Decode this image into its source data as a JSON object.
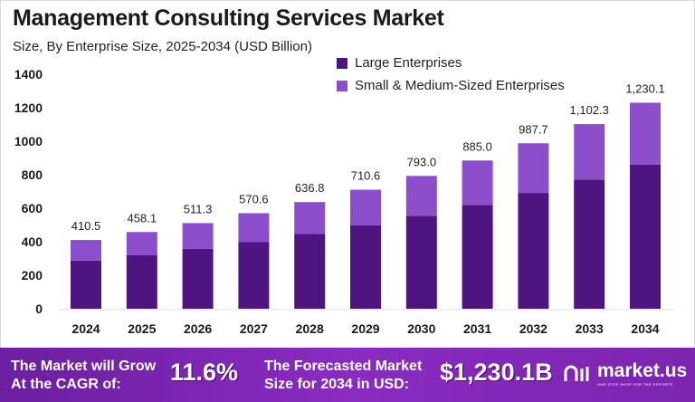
{
  "title": "Management Consulting Services Market",
  "subtitle": "Size, By Enterprise Size, 2025-2034 (USD Billion)",
  "colors": {
    "large": "#4e1580",
    "sme": "#8c4ecb",
    "banner": "#7b25b0"
  },
  "chart_data": {
    "type": "bar",
    "stacked": true,
    "categories": [
      "2024",
      "2025",
      "2026",
      "2027",
      "2028",
      "2029",
      "2030",
      "2031",
      "2032",
      "2033",
      "2034"
    ],
    "series": [
      {
        "name": "Large Enterprises",
        "values": [
          287.4,
          320.7,
          357.9,
          399.4,
          445.8,
          497.4,
          555.1,
          619.5,
          691.4,
          771.6,
          861.1
        ]
      },
      {
        "name": "Small & Medium-Sized Enterprises",
        "values": [
          123.1,
          137.4,
          153.4,
          171.2,
          191.0,
          213.2,
          237.9,
          265.5,
          296.3,
          330.7,
          369.0
        ]
      }
    ],
    "totals": [
      "410.5",
      "458.1",
      "511.3",
      "570.6",
      "636.8",
      "710.6",
      "793.0",
      "885.0",
      "987.7",
      "1,102.3",
      "1,230.1"
    ],
    "totals_values": [
      410.5,
      458.1,
      511.3,
      570.6,
      636.8,
      710.6,
      793.0,
      885.0,
      987.7,
      1102.3,
      1230.1
    ],
    "yticks": [
      "0",
      "200",
      "400",
      "600",
      "800",
      "1000",
      "1200",
      "1400"
    ],
    "ylim": [
      0,
      1400
    ],
    "grid": false,
    "legend": "top-right"
  },
  "banner": {
    "cagr_label": [
      "The Market will Grow",
      "At the CAGR of:"
    ],
    "cagr_value": "11.6%",
    "forecast_label": [
      "The Forecasted Market",
      "Size for 2034 in USD:"
    ],
    "forecast_value": "$1,230.1B",
    "logo_text": "market.us",
    "logo_tagline": "ONE STOP SHOP FOR THE REPORTS"
  }
}
